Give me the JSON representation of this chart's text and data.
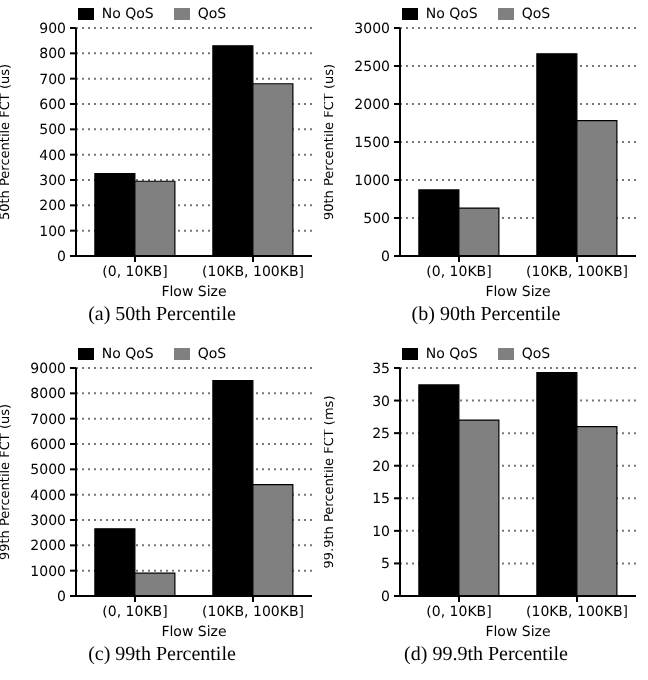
{
  "chart_data": [
    {
      "type": "bar",
      "title": "(a) 50th Percentile",
      "xlabel": "Flow Size",
      "ylabel": "50th Percentile FCT (us)",
      "categories": [
        "(0, 10KB]",
        "(10KB, 100KB]"
      ],
      "series": [
        {
          "name": "No QoS",
          "color": "#000000",
          "values": [
            325,
            830
          ]
        },
        {
          "name": "QoS",
          "color": "#808080",
          "values": [
            295,
            680
          ]
        }
      ],
      "ylim": [
        0,
        900
      ],
      "yticks": [
        0,
        100,
        200,
        300,
        400,
        500,
        600,
        700,
        800,
        900
      ],
      "grid": "y",
      "legend": "top"
    },
    {
      "type": "bar",
      "title": "(b) 90th Percentile",
      "xlabel": "Flow Size",
      "ylabel": "90th Percentile FCT (us)",
      "categories": [
        "(0, 10KB]",
        "(10KB, 100KB]"
      ],
      "series": [
        {
          "name": "No QoS",
          "color": "#000000",
          "values": [
            870,
            2660
          ]
        },
        {
          "name": "QoS",
          "color": "#808080",
          "values": [
            630,
            1780
          ]
        }
      ],
      "ylim": [
        0,
        3000
      ],
      "yticks": [
        0,
        500,
        1000,
        1500,
        2000,
        2500,
        3000
      ],
      "grid": "y",
      "legend": "top"
    },
    {
      "type": "bar",
      "title": "(c) 99th Percentile",
      "xlabel": "Flow Size",
      "ylabel": "99th Percentile FCT (us)",
      "categories": [
        "(0, 10KB]",
        "(10KB, 100KB]"
      ],
      "series": [
        {
          "name": "No QoS",
          "color": "#000000",
          "values": [
            2650,
            8500
          ]
        },
        {
          "name": "QoS",
          "color": "#808080",
          "values": [
            900,
            4400
          ]
        }
      ],
      "ylim": [
        0,
        9000
      ],
      "yticks": [
        0,
        1000,
        2000,
        3000,
        4000,
        5000,
        6000,
        7000,
        8000,
        9000
      ],
      "grid": "y",
      "legend": "top"
    },
    {
      "type": "bar",
      "title": "(d) 99.9th Percentile",
      "xlabel": "Flow Size",
      "ylabel": "99.9th Percentile FCT (ms)",
      "categories": [
        "(0, 10KB]",
        "(10KB, 100KB]"
      ],
      "series": [
        {
          "name": "No QoS",
          "color": "#000000",
          "values": [
            32.4,
            34.3
          ]
        },
        {
          "name": "QoS",
          "color": "#808080",
          "values": [
            27,
            26
          ]
        }
      ],
      "ylim": [
        0,
        35
      ],
      "yticks": [
        0,
        5,
        10,
        15,
        20,
        25,
        30,
        35
      ],
      "grid": "y",
      "legend": "top"
    }
  ]
}
